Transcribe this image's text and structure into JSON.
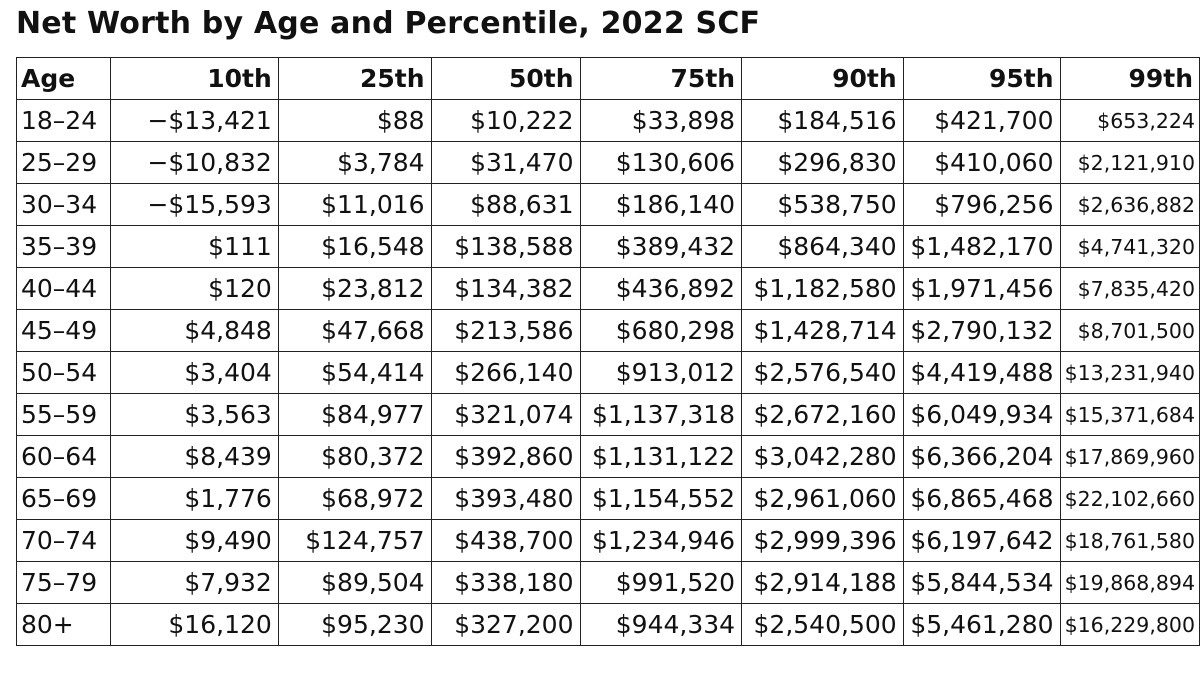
{
  "chart_data": {
    "type": "table",
    "title": "Net Worth by Age and Percentile, 2022 SCF",
    "columns": [
      "Age",
      "10th",
      "25th",
      "50th",
      "75th",
      "90th",
      "95th",
      "99th"
    ],
    "rows": [
      [
        "18–24",
        "−$13,421",
        "$88",
        "$10,222",
        "$33,898",
        "$184,516",
        "$421,700",
        "$653,224"
      ],
      [
        "25–29",
        "−$10,832",
        "$3,784",
        "$31,470",
        "$130,606",
        "$296,830",
        "$410,060",
        "$2,121,910"
      ],
      [
        "30–34",
        "−$15,593",
        "$11,016",
        "$88,631",
        "$186,140",
        "$538,750",
        "$796,256",
        "$2,636,882"
      ],
      [
        "35–39",
        "$111",
        "$16,548",
        "$138,588",
        "$389,432",
        "$864,340",
        "$1,482,170",
        "$4,741,320"
      ],
      [
        "40–44",
        "$120",
        "$23,812",
        "$134,382",
        "$436,892",
        "$1,182,580",
        "$1,971,456",
        "$7,835,420"
      ],
      [
        "45–49",
        "$4,848",
        "$47,668",
        "$213,586",
        "$680,298",
        "$1,428,714",
        "$2,790,132",
        "$8,701,500"
      ],
      [
        "50–54",
        "$3,404",
        "$54,414",
        "$266,140",
        "$913,012",
        "$2,576,540",
        "$4,419,488",
        "$13,231,940"
      ],
      [
        "55–59",
        "$3,563",
        "$84,977",
        "$321,074",
        "$1,137,318",
        "$2,672,160",
        "$6,049,934",
        "$15,371,684"
      ],
      [
        "60–64",
        "$8,439",
        "$80,372",
        "$392,860",
        "$1,131,122",
        "$3,042,280",
        "$6,366,204",
        "$17,869,960"
      ],
      [
        "65–69",
        "$1,776",
        "$68,972",
        "$393,480",
        "$1,154,552",
        "$2,961,060",
        "$6,865,468",
        "$22,102,660"
      ],
      [
        "70–74",
        "$9,490",
        "$124,757",
        "$438,700",
        "$1,234,946",
        "$2,999,396",
        "$6,197,642",
        "$18,761,580"
      ],
      [
        "75–79",
        "$7,932",
        "$89,504",
        "$338,180",
        "$991,520",
        "$2,914,188",
        "$5,844,534",
        "$19,868,894"
      ],
      [
        "80+",
        "$16,120",
        "$95,230",
        "$327,200",
        "$944,334",
        "$2,540,500",
        "$5,461,280",
        "$16,229,800"
      ]
    ]
  }
}
